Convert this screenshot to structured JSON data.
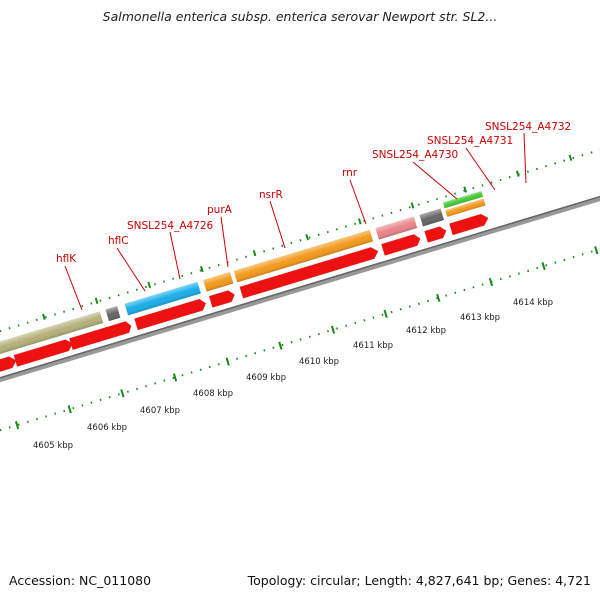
{
  "title": "Salmonella enterica subsp. enterica serovar Newport str. SL2...",
  "footer": {
    "accession": "Accession: NC_011080",
    "summary": "Topology: circular; Length: 4,827,641 bp; Genes: 4,721"
  },
  "gene_labels": {
    "hflK": "hflK",
    "hflC": "hflC",
    "a4726": "SNSL254_A4726",
    "purA": "purA",
    "nsrR": "nsrR",
    "rnr": "rnr",
    "a4730": "SNSL254_A4730",
    "a4731": "SNSL254_A4731",
    "a4732": "SNSL254_A4732"
  },
  "kbp_labels": {
    "k4605": "4605 kbp",
    "k4606": "4606 kbp",
    "k4607": "4607 kbp",
    "k4608": "4608 kbp",
    "k4609": "4609 kbp",
    "k4610": "4610 kbp",
    "k4611": "4611 kbp",
    "k4612": "4612 kbp",
    "k4613": "4613 kbp",
    "k4614": "4614 kbp"
  },
  "colors": {
    "gray_gene": "#c8c8c8",
    "olive_gene": "#b5b07a",
    "dark_gray_gene": "#666666",
    "cyan_gene": "#1aaee8",
    "orange_gene": "#f39a1c",
    "pink_gene": "#e8858a",
    "green_gene": "#44cc33",
    "red_cds": "#ee1111",
    "tick_green": "#1a8a1a",
    "backbone": "#999999",
    "label_red": "#cc0000"
  }
}
